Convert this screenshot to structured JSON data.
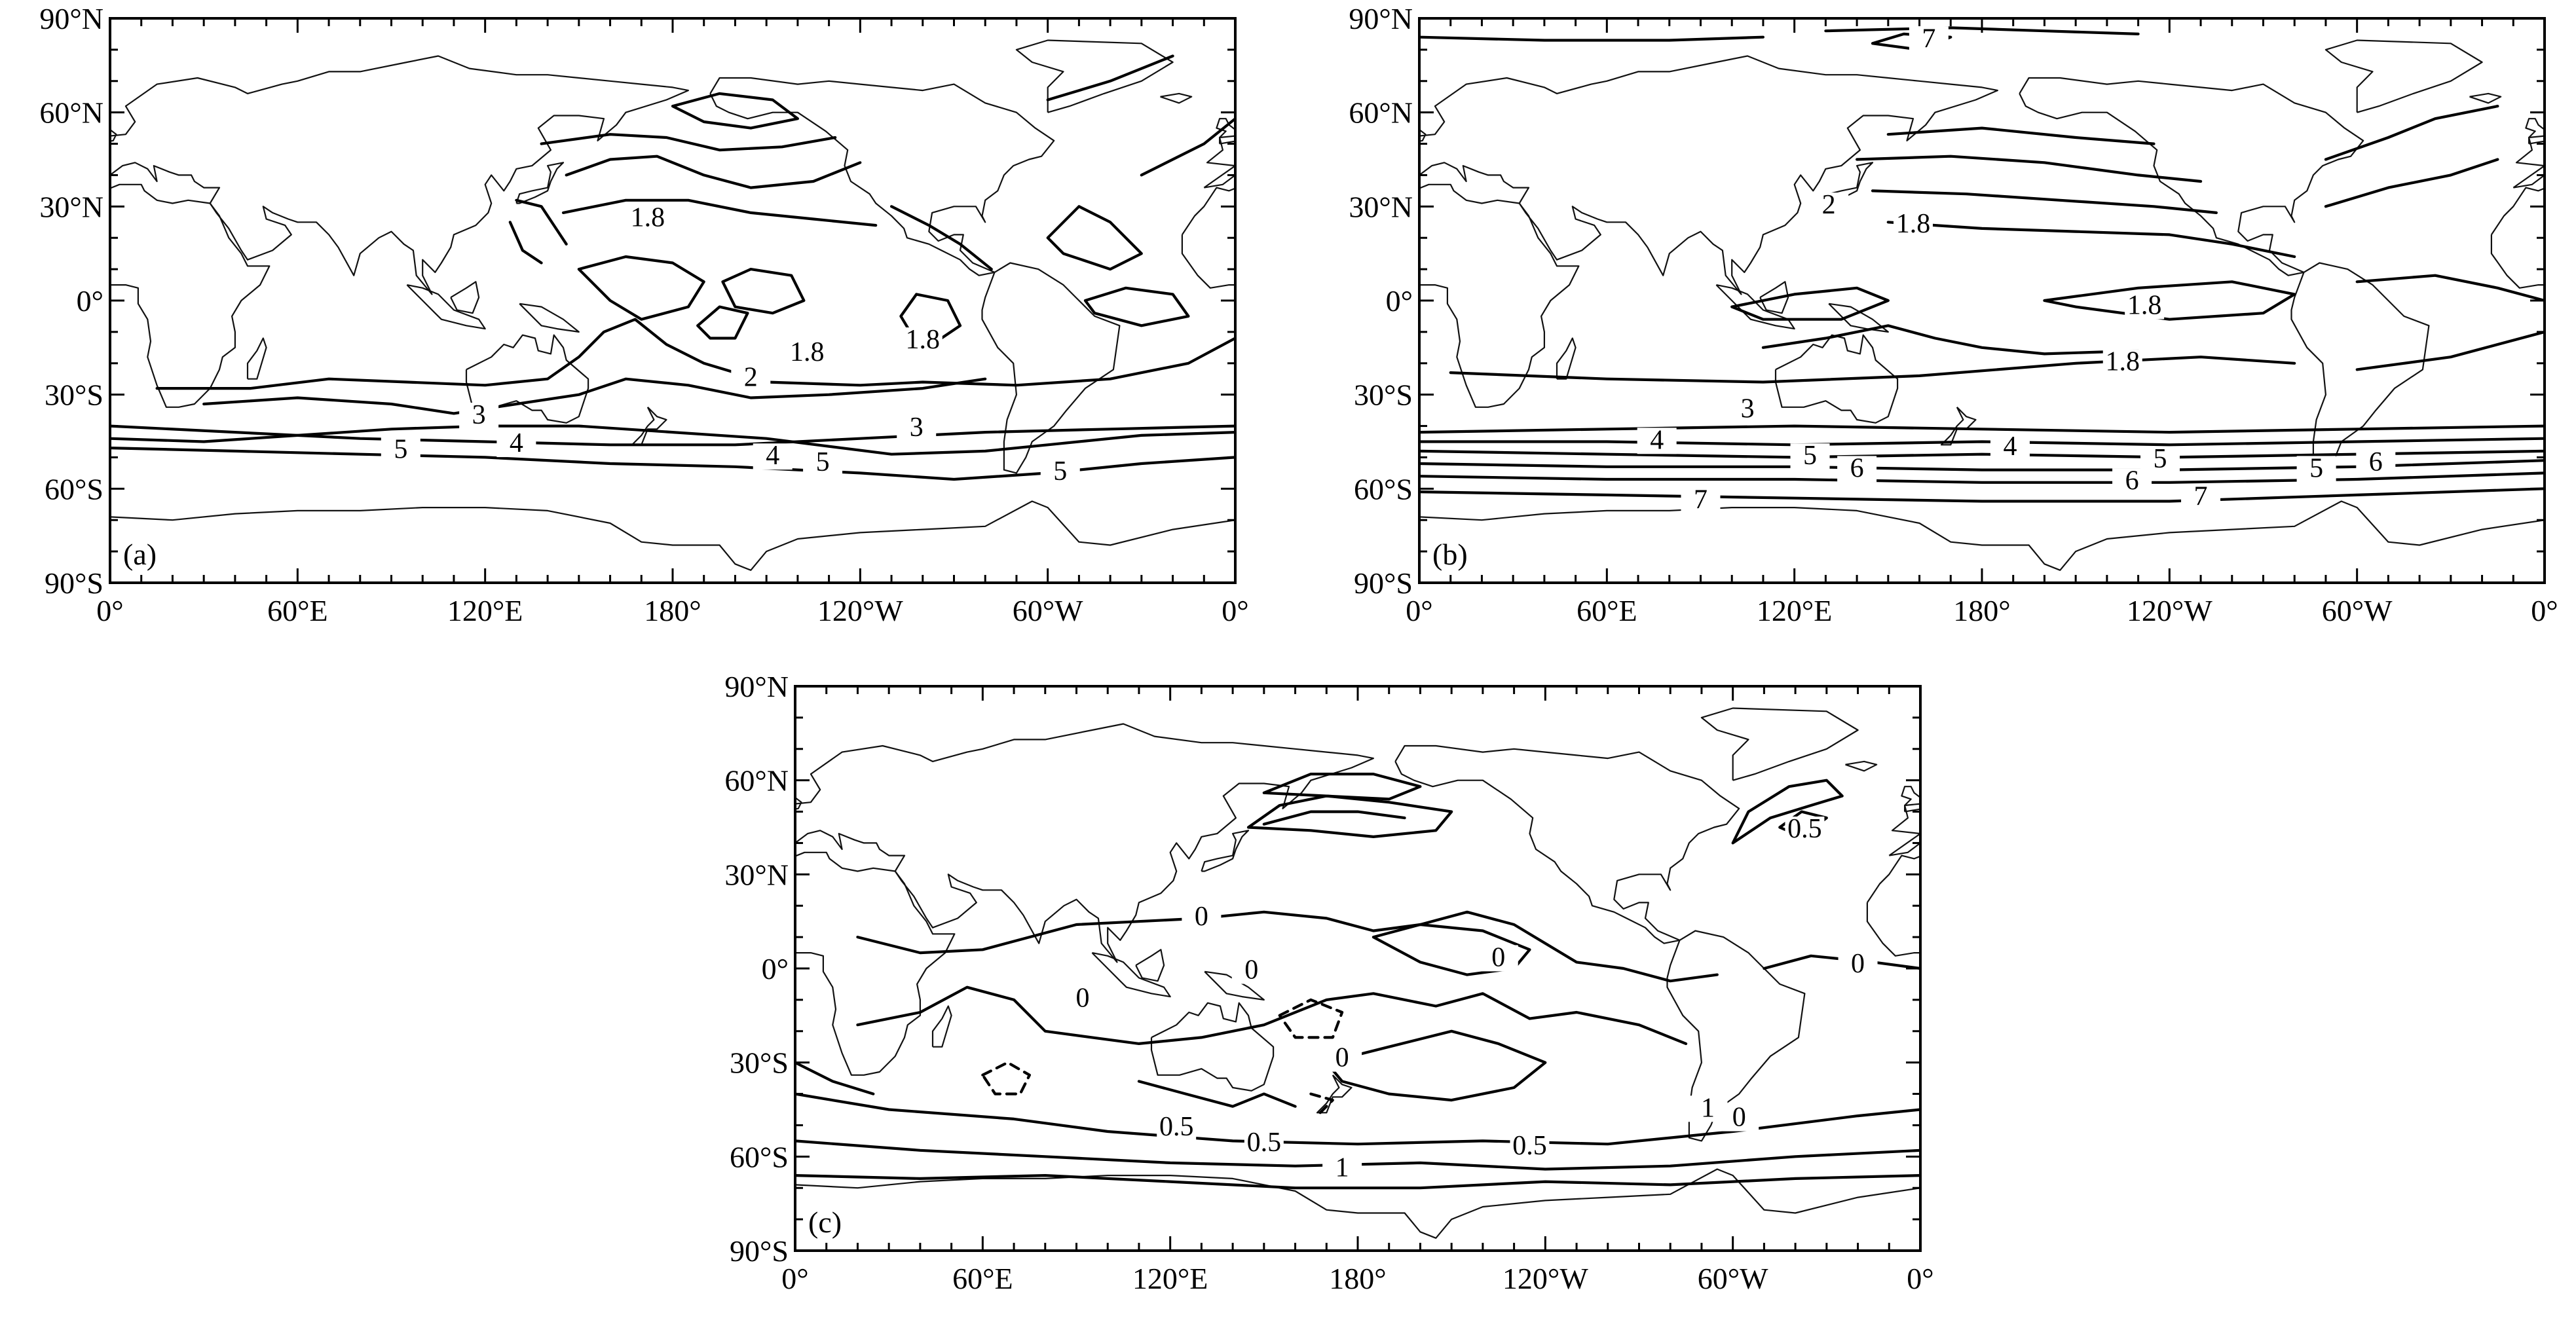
{
  "axes": {
    "lon_ticks": [
      "0°",
      "60°E",
      "120°E",
      "180°",
      "120°W",
      "60°W",
      "0°"
    ],
    "lat_ticks": [
      "90°N",
      "60°N",
      "30°N",
      "0°",
      "30°S",
      "60°S",
      "90°S"
    ]
  },
  "panels": [
    {
      "id": "a",
      "label": "(a)",
      "contour_labels": [
        "1.8",
        "1.8",
        "1.8",
        "2",
        "3",
        "3",
        "4",
        "4",
        "5",
        "5",
        "5"
      ]
    },
    {
      "id": "b",
      "label": "(b)",
      "contour_labels": [
        "7",
        "2",
        "1.8",
        "1.8",
        "1.8",
        "3",
        "4",
        "4",
        "5",
        "5",
        "5",
        "6",
        "6",
        "6",
        "7",
        "7"
      ]
    },
    {
      "id": "c",
      "label": "(c)",
      "contour_labels": [
        "0",
        "0",
        "0",
        "0",
        "0",
        "0",
        "0",
        "0.5",
        "0.5",
        "0.5",
        "0.5",
        "1",
        "1"
      ]
    }
  ]
}
